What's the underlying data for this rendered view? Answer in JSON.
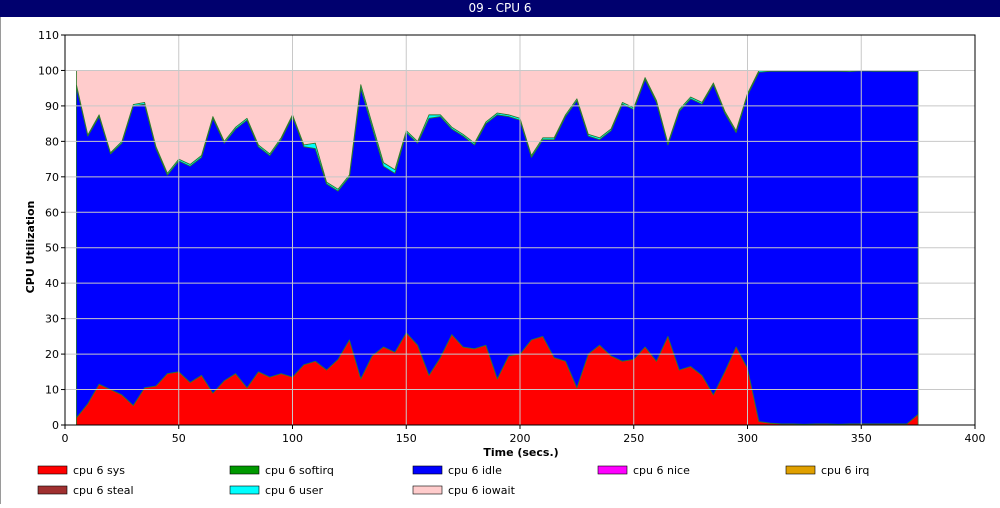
{
  "window": {
    "title": "09 - CPU 6"
  },
  "chart_data": {
    "type": "area",
    "stacked": true,
    "title": "09 - CPU 6",
    "xlabel": "Time (secs.)",
    "ylabel": "CPU Utilization",
    "xlim": [
      0,
      400
    ],
    "ylim": [
      0,
      110
    ],
    "xticks": [
      0,
      50,
      100,
      150,
      200,
      250,
      300,
      350,
      400
    ],
    "yticks": [
      0,
      10,
      20,
      30,
      40,
      50,
      60,
      70,
      80,
      90,
      100,
      110
    ],
    "grid": true,
    "legend_position": "bottom",
    "x": [
      5,
      10,
      15,
      20,
      25,
      30,
      35,
      40,
      45,
      50,
      55,
      60,
      65,
      70,
      75,
      80,
      85,
      90,
      95,
      100,
      105,
      110,
      115,
      120,
      125,
      130,
      135,
      140,
      145,
      150,
      155,
      160,
      165,
      170,
      175,
      180,
      185,
      190,
      195,
      200,
      205,
      210,
      215,
      220,
      225,
      230,
      235,
      240,
      245,
      250,
      255,
      260,
      265,
      270,
      275,
      280,
      285,
      290,
      295,
      300,
      305,
      310,
      315,
      320,
      325,
      330,
      335,
      340,
      345,
      350,
      355,
      360,
      365,
      370,
      375
    ],
    "series": [
      {
        "name": "cpu 6 sys",
        "color": "#ff0000",
        "values": [
          2,
          6,
          11.5,
          10,
          8.5,
          5.5,
          10.5,
          11,
          14.5,
          15,
          12,
          14,
          9,
          12.5,
          14.5,
          10.5,
          15,
          13.5,
          14.5,
          13.5,
          17,
          18,
          15.5,
          18.5,
          24,
          13,
          19.5,
          22,
          20.5,
          26,
          22.5,
          14,
          19,
          25.5,
          22,
          21.5,
          22.5,
          13,
          19.5,
          20,
          24,
          25,
          19,
          18,
          10.5,
          20,
          22.5,
          19.5,
          18,
          18.5,
          22,
          18,
          25,
          15.5,
          16.5,
          14,
          8.5,
          15,
          22,
          16,
          1,
          0.5,
          0.3,
          0.3,
          0.2,
          0.3,
          0.3,
          0.2,
          0.3,
          0.3,
          0.3,
          0.3,
          0.3,
          0.3,
          3
        ]
      },
      {
        "name": "cpu 6 softirq",
        "color": "#009900",
        "values": [
          0,
          0,
          0,
          0,
          0,
          0,
          0,
          0,
          0,
          0,
          0,
          0,
          0,
          0,
          0,
          0,
          0,
          0,
          0,
          0,
          0,
          0,
          0,
          0,
          0,
          0,
          0,
          0,
          0,
          0,
          0,
          0,
          0,
          0,
          0,
          0,
          0,
          0,
          0,
          0,
          0,
          0,
          0,
          0,
          0,
          0,
          0,
          0,
          0,
          0,
          0,
          0,
          0,
          0,
          0,
          0,
          0,
          0,
          0,
          0,
          0,
          0,
          0,
          0,
          0,
          0,
          0,
          0,
          0,
          0,
          0,
          0,
          0,
          0,
          0
        ]
      },
      {
        "name": "cpu 6 idle",
        "color": "#0000ff",
        "values": [
          93.5,
          75.5,
          75.5,
          66.5,
          71,
          84.5,
          80,
          67,
          56,
          59.5,
          61,
          61.5,
          77.5,
          67,
          69,
          75.5,
          63.5,
          62.5,
          66,
          73.5,
          61.5,
          60,
          52.5,
          47.5,
          46,
          82,
          64.5,
          51,
          50.5,
          56.5,
          57,
          72.5,
          68,
          58,
          59.5,
          57.5,
          62.5,
          74.5,
          67.5,
          66,
          51.5,
          55.5,
          61.5,
          69,
          81,
          61.5,
          58,
          63.5,
          72.5,
          70.5,
          75.5,
          73,
          54,
          73,
          75.5,
          76.5,
          87.5,
          73,
          60.5,
          77,
          98.5,
          99.3,
          99.5,
          99.5,
          99.6,
          99.5,
          99.5,
          99.6,
          99.4,
          99.6,
          99.5,
          99.5,
          99.5,
          99.5,
          96.8
        ]
      },
      {
        "name": "cpu 6 nice",
        "color": "#ff00ff",
        "values": [
          0,
          0,
          0,
          0,
          0,
          0,
          0,
          0,
          0,
          0,
          0,
          0,
          0,
          0,
          0,
          0,
          0,
          0,
          0,
          0,
          0,
          0,
          0,
          0,
          0,
          0,
          0,
          0,
          0,
          0,
          0,
          0,
          0,
          0,
          0,
          0,
          0,
          0,
          0,
          0,
          0,
          0,
          0,
          0,
          0,
          0,
          0,
          0,
          0,
          0,
          0,
          0,
          0,
          0,
          0,
          0,
          0,
          0,
          0,
          0,
          0,
          0,
          0,
          0,
          0,
          0,
          0,
          0,
          0,
          0,
          0,
          0,
          0,
          0,
          0
        ]
      },
      {
        "name": "cpu 6 irq",
        "color": "#e0a000",
        "values": [
          0,
          0,
          0,
          0,
          0,
          0,
          0,
          0,
          0,
          0,
          0,
          0,
          0,
          0,
          0,
          0,
          0,
          0,
          0,
          0,
          0,
          0,
          0,
          0,
          0,
          0,
          0,
          0,
          0,
          0,
          0,
          0,
          0,
          0,
          0,
          0,
          0,
          0,
          0,
          0,
          0,
          0,
          0,
          0,
          0,
          0,
          0,
          0,
          0,
          0,
          0,
          0,
          0,
          0,
          0,
          0,
          0,
          0,
          0,
          0,
          0,
          0,
          0,
          0,
          0,
          0,
          0,
          0,
          0,
          0,
          0,
          0,
          0,
          0,
          0
        ]
      },
      {
        "name": "cpu 6 steal",
        "color": "#a03030",
        "values": [
          0,
          0,
          0,
          0,
          0,
          0,
          0,
          0,
          0,
          0,
          0,
          0,
          0,
          0,
          0,
          0,
          0,
          0,
          0,
          0,
          0,
          0,
          0,
          0,
          0,
          0,
          0,
          0,
          0,
          0,
          0,
          0,
          0,
          0,
          0,
          0,
          0,
          0,
          0,
          0,
          0,
          0,
          0,
          0,
          0,
          0,
          0,
          0,
          0,
          0,
          0,
          0,
          0,
          0,
          0,
          0,
          0,
          0,
          0,
          0,
          0,
          0,
          0,
          0,
          0,
          0,
          0,
          0,
          0,
          0,
          0,
          0,
          0,
          0,
          0
        ]
      },
      {
        "name": "cpu 6 user",
        "color": "#00ffff",
        "values": [
          0.5,
          0.3,
          0.5,
          0.3,
          0.5,
          0.4,
          0.5,
          0.5,
          0.5,
          0.5,
          0.5,
          0.5,
          0.5,
          0.5,
          0.5,
          0.5,
          0.5,
          0.5,
          0.5,
          0.5,
          0.5,
          1.5,
          0.5,
          0.5,
          0.5,
          1,
          1,
          1,
          1,
          0.5,
          0.5,
          1,
          0.5,
          0.5,
          0.5,
          0.5,
          0.5,
          0.5,
          0.5,
          0.5,
          0.5,
          0.5,
          0.5,
          0.5,
          0.5,
          0.5,
          0.5,
          0.5,
          0.5,
          0.5,
          0.5,
          0.5,
          0.5,
          0.5,
          0.5,
          0.5,
          0.5,
          0.5,
          0.5,
          0.5,
          0.5,
          0.2,
          0.2,
          0.2,
          0.2,
          0.2,
          0.2,
          0.2,
          0.3,
          0.1,
          0.2,
          0.2,
          0.2,
          0.2,
          0.2
        ]
      },
      {
        "name": "cpu 6 iowait",
        "color": "#ffcccc",
        "values": [
          4,
          18.2,
          12.5,
          23.2,
          20,
          9.6,
          9,
          21.5,
          29,
          25,
          26.5,
          24,
          13,
          20,
          16,
          13.5,
          21,
          23.5,
          19,
          12.5,
          21,
          20.5,
          31.5,
          33.5,
          29.5,
          4,
          15,
          26,
          28,
          17,
          20,
          12.5,
          12.5,
          16,
          18,
          20.5,
          14.5,
          12,
          12.5,
          13.5,
          24,
          19,
          19,
          12.5,
          8,
          18,
          19,
          16.5,
          9,
          10.5,
          2,
          8.5,
          20.5,
          11,
          7.5,
          9,
          3.5,
          11.5,
          17,
          6.5,
          0,
          0,
          0,
          0,
          0,
          0,
          0,
          0,
          0,
          0,
          0,
          0,
          0,
          0,
          0
        ]
      }
    ]
  }
}
